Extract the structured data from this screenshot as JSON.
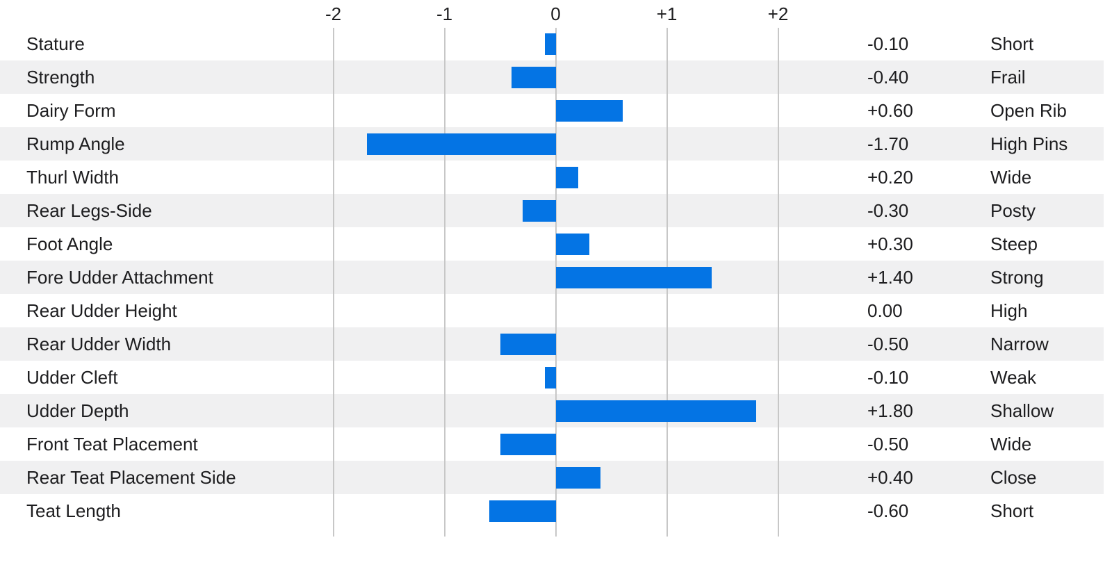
{
  "chart_data": {
    "type": "bar",
    "orientation": "horizontal",
    "title": "",
    "xlabel": "",
    "ylabel": "",
    "xlim": [
      -2.5,
      2.5
    ],
    "grid": true,
    "x_ticks": [
      -2,
      -1,
      0,
      1,
      2
    ],
    "x_tick_labels": [
      "-2",
      "-1",
      "0",
      "+1",
      "+2"
    ],
    "categories": [
      "Stature",
      "Strength",
      "Dairy Form",
      "Rump Angle",
      "Thurl Width",
      "Rear Legs-Side",
      "Foot Angle",
      "Fore Udder Attachment",
      "Rear Udder Height",
      "Rear Udder Width",
      "Udder Cleft",
      "Udder Depth",
      "Front Teat Placement",
      "Rear Teat Placement Side",
      "Teat Length"
    ],
    "values": [
      -0.1,
      -0.4,
      0.6,
      -1.7,
      0.2,
      -0.3,
      0.3,
      1.4,
      0.0,
      -0.5,
      -0.1,
      1.8,
      -0.5,
      0.4,
      -0.6
    ],
    "value_labels": [
      "-0.10",
      "-0.40",
      "+0.60",
      "-1.70",
      "+0.20",
      "-0.30",
      "+0.30",
      "+1.40",
      "0.00",
      "-0.50",
      "-0.10",
      "+1.80",
      "-0.50",
      "+0.40",
      "-0.60"
    ],
    "descriptors": [
      "Short",
      "Frail",
      "Open Rib",
      "High Pins",
      "Wide",
      "Posty",
      "Steep",
      "Strong",
      "High",
      "Narrow",
      "Weak",
      "Shallow",
      "Wide",
      "Close",
      "Short"
    ],
    "colors": {
      "bar": "#0474e4",
      "alt_row": "#f0f0f1",
      "gridline": "#c7c7c7",
      "text": "#1d1d1f"
    },
    "legend": null
  }
}
